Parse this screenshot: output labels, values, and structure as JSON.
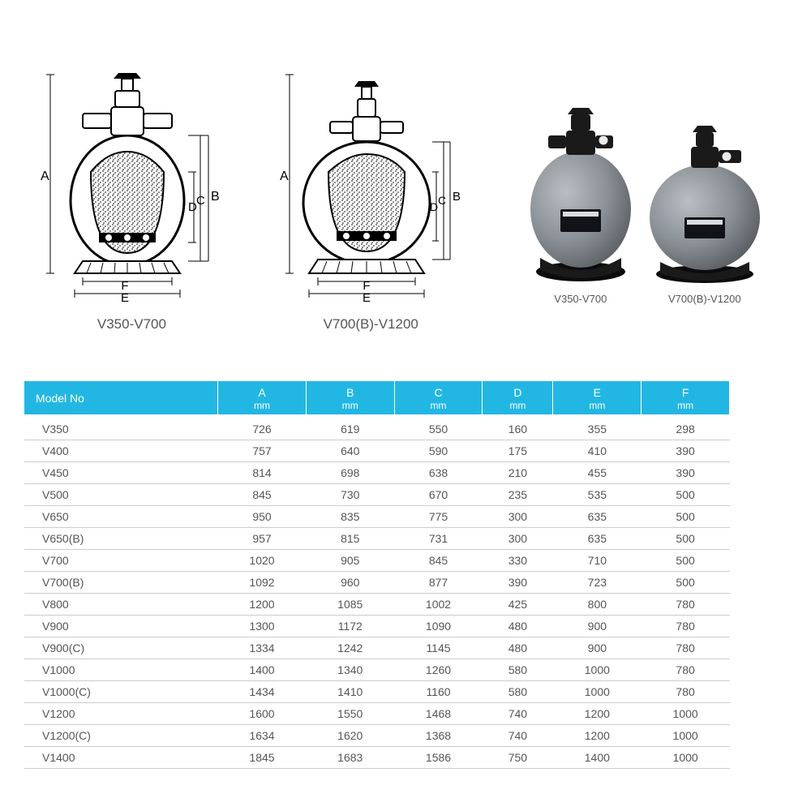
{
  "diagrams": {
    "left": {
      "label": "V350-V700",
      "dims": [
        "A",
        "B",
        "C",
        "D",
        "E",
        "F"
      ]
    },
    "right": {
      "label": "V700(B)-V1200",
      "dims": [
        "A",
        "B",
        "C",
        "D",
        "E",
        "F"
      ]
    }
  },
  "photos": {
    "left_label": "V350-V700",
    "right_label": "V700(B)-V1200"
  },
  "table": {
    "header_bg": "#22b7e2",
    "header_fg": "#ffffff",
    "row_line": "#cccccc",
    "text_color": "#555555",
    "columns": [
      {
        "label": "Model No",
        "unit": ""
      },
      {
        "label": "A",
        "unit": "mm"
      },
      {
        "label": "B",
        "unit": "mm"
      },
      {
        "label": "C",
        "unit": "mm"
      },
      {
        "label": "D",
        "unit": "mm"
      },
      {
        "label": "E",
        "unit": "mm"
      },
      {
        "label": "F",
        "unit": "mm"
      }
    ],
    "rows": [
      [
        "V350",
        "726",
        "619",
        "550",
        "160",
        "355",
        "298"
      ],
      [
        "V400",
        "757",
        "640",
        "590",
        "175",
        "410",
        "390"
      ],
      [
        "V450",
        "814",
        "698",
        "638",
        "210",
        "455",
        "390"
      ],
      [
        "V500",
        "845",
        "730",
        "670",
        "235",
        "535",
        "500"
      ],
      [
        "V650",
        "950",
        "835",
        "775",
        "300",
        "635",
        "500"
      ],
      [
        "V650(B)",
        "957",
        "815",
        "731",
        "300",
        "635",
        "500"
      ],
      [
        "V700",
        "1020",
        "905",
        "845",
        "330",
        "710",
        "500"
      ],
      [
        "V700(B)",
        "1092",
        "960",
        "877",
        "390",
        "723",
        "500"
      ],
      [
        "V800",
        "1200",
        "1085",
        "1002",
        "425",
        "800",
        "780"
      ],
      [
        "V900",
        "1300",
        "1172",
        "1090",
        "480",
        "900",
        "780"
      ],
      [
        "V900(C)",
        "1334",
        "1242",
        "1145",
        "480",
        "900",
        "780"
      ],
      [
        "V1000",
        "1400",
        "1340",
        "1260",
        "580",
        "1000",
        "780"
      ],
      [
        "V1000(C)",
        "1434",
        "1410",
        "1160",
        "580",
        "1000",
        "780"
      ],
      [
        "V1200",
        "1600",
        "1550",
        "1468",
        "740",
        "1200",
        "1000"
      ],
      [
        "V1200(C)",
        "1634",
        "1620",
        "1368",
        "740",
        "1200",
        "1000"
      ],
      [
        "V1400",
        "1845",
        "1683",
        "1586",
        "750",
        "1400",
        "1000"
      ]
    ]
  }
}
